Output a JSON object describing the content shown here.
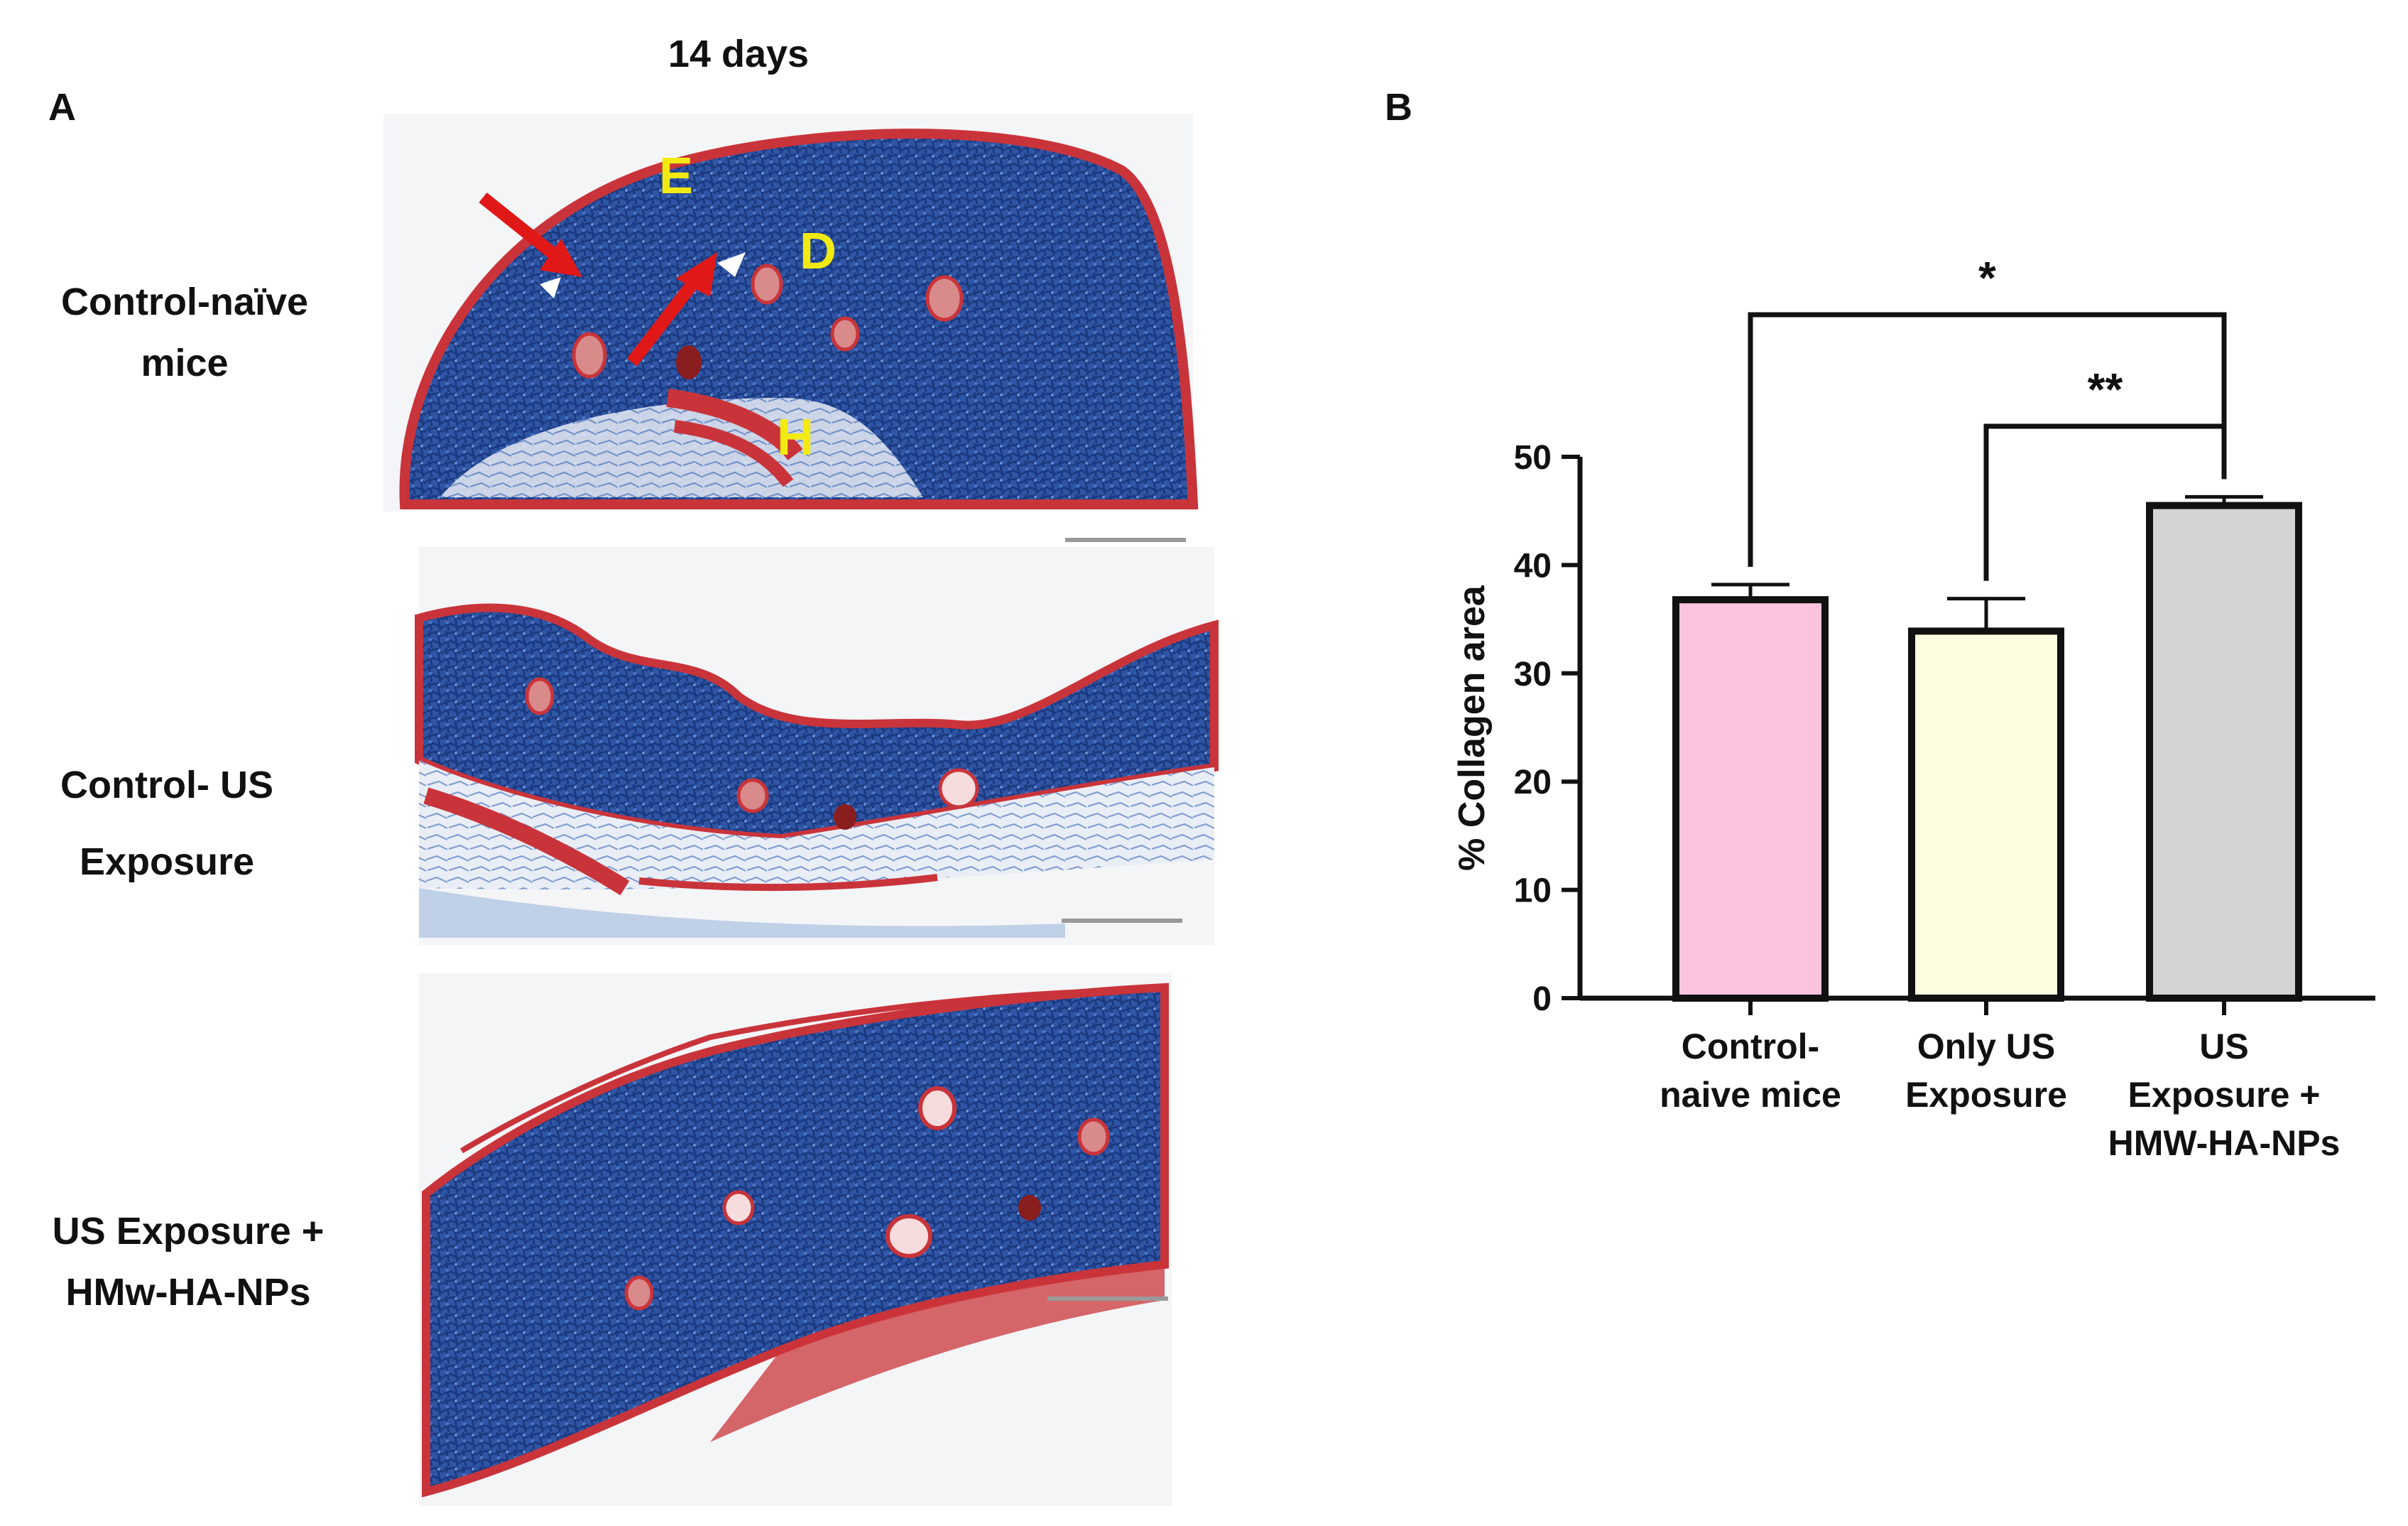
{
  "panel_a": {
    "letter": "A",
    "time_point": "14 days",
    "rows": [
      {
        "label_line1": "Control-naïve",
        "label_line2": "mice"
      },
      {
        "label_line1": "Control- US",
        "label_line2": "Exposure"
      },
      {
        "label_line1": "US Exposure  +",
        "label_line2": "HMw-HA-NPs"
      }
    ],
    "layer_labels": {
      "epidermis": "E",
      "dermis": "D",
      "hypodermis": "H"
    },
    "colors": {
      "collagen": "#2b4f9e",
      "keratin_muscle": "#c9343a",
      "background": "#f6f6f8",
      "scale_bar": "#9a9a9a",
      "annotation": "#f2ea12",
      "arrow": "#e01818"
    }
  },
  "panel_b": {
    "letter": "B"
  },
  "chart_data": {
    "type": "bar",
    "categories": [
      [
        "Control-",
        "naive mice"
      ],
      [
        "Only US",
        "Exposure"
      ],
      [
        "US",
        "Exposure +",
        "HMW-HA-NPs"
      ]
    ],
    "values": [
      36.8,
      33.9,
      45.5
    ],
    "errors": [
      1.4,
      3.0,
      0.8
    ],
    "colors": [
      "#fcc3df",
      "#fdfde1",
      "#d3d3d3"
    ],
    "ylabel": "% Collagen area",
    "ylim": [
      0,
      50
    ],
    "yticks": [
      0,
      10,
      20,
      30,
      40,
      50
    ],
    "significance": [
      {
        "from": 0,
        "to": 2,
        "label": "*"
      },
      {
        "from": 1,
        "to": 2,
        "label": "**"
      }
    ]
  }
}
